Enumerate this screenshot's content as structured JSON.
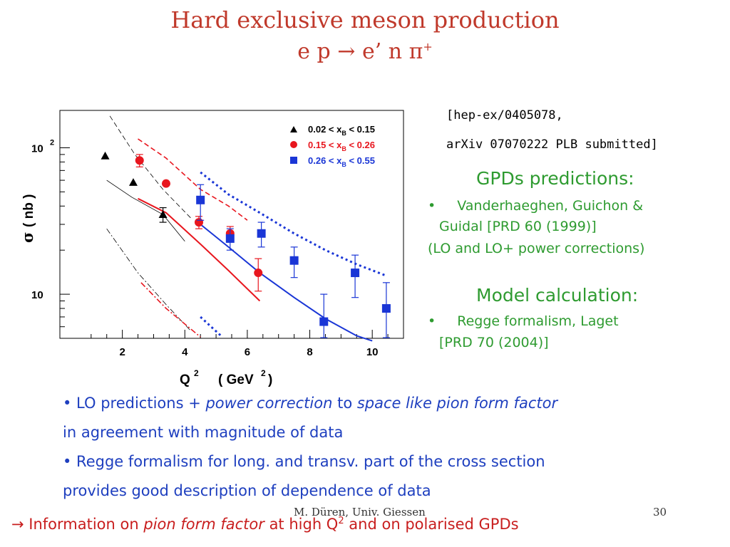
{
  "title": {
    "line1": "Hard exclusive meson production",
    "line2_parts": {
      "left": "e p",
      "arrow": "→",
      "right": "e’ n π",
      "sup": "+"
    }
  },
  "reference": {
    "line1": "[hep-ex/0405078,",
    "line2": "arXiv 07070222 PLB submitted]"
  },
  "gpd_section": {
    "heading": "GPDs predictions:",
    "bullet_text_1": "Vanderhaeghen, Guichon &",
    "bullet_text_2": "Guidal [PRD 60 (1999)]",
    "note": "(LO and LO+ power corrections)"
  },
  "model_section": {
    "heading": "Model calculation:",
    "bullet_text_1": "Regge formalism, Laget",
    "bullet_text_2": "[PRD 70 (2004)]"
  },
  "bullets": [
    {
      "p1": "• LO predictions + ",
      "p2_italic": "power correction",
      "p3": " to ",
      "p4_italic": "space like pion form factor",
      "line2": "in agreement with magnitude of data"
    },
    {
      "line1": "•  Regge formalism for long. and transv. part of the cross section",
      "line2": "provides good description of dependence of data"
    }
  ],
  "footer": {
    "author": "M. Düren, Univ. Giessen",
    "page": "30"
  },
  "conclusion": {
    "arrow": "→",
    "p1": " Information on ",
    "p2_italic": "pion form factor",
    "p3": "  at high Q",
    "sup": "2",
    "p4": " and on polarised GPDs"
  },
  "colors": {
    "title": "#c0392b",
    "green": "#2e9b30",
    "blue_text": "#1e3fbf",
    "red_text": "#c81e1e",
    "series_black": "#000000",
    "series_red": "#e8161e",
    "series_blue": "#1a36d6"
  },
  "chart_data": {
    "type": "scatter",
    "xlabel_parts": {
      "q": "Q",
      "qsup": "2",
      "unit": "( GeV",
      "usup": "2",
      "close": " )"
    },
    "ylabel_parts": {
      "sigma": "σ",
      "unit": "( nb )"
    },
    "y_scale": "log",
    "xlim": [
      0,
      11
    ],
    "ylim": [
      5,
      180
    ],
    "x_ticks": [
      "2",
      "4",
      "6",
      "8",
      "10"
    ],
    "y_ticks": [
      {
        "value": 10,
        "label": "10"
      },
      {
        "value": 100,
        "label": "10",
        "sup": "2"
      }
    ],
    "grid": false,
    "legend_position": "top-right",
    "series": [
      {
        "name_parts": {
          "lo": "0.02 < x",
          "sub": "B",
          "hi": " < 0.15"
        },
        "marker": "triangle",
        "color": "#000000",
        "points": [
          {
            "x": 1.45,
            "y": 88,
            "err": 0
          },
          {
            "x": 2.35,
            "y": 58,
            "err": 0
          },
          {
            "x": 3.3,
            "y": 35,
            "err": 4
          }
        ]
      },
      {
        "name_parts": {
          "lo": "0.15 < x",
          "sub": "B",
          "hi": " < 0.26"
        },
        "marker": "circle",
        "color": "#e8161e",
        "points": [
          {
            "x": 2.55,
            "y": 82,
            "err": 8
          },
          {
            "x": 3.4,
            "y": 57,
            "err": 0
          },
          {
            "x": 4.45,
            "y": 31,
            "err": 3
          },
          {
            "x": 5.45,
            "y": 26,
            "err": 3
          },
          {
            "x": 6.35,
            "y": 14,
            "err": 3.5
          }
        ]
      },
      {
        "name_parts": {
          "lo": "0.26 < x",
          "sub": "B",
          "hi": " < 0.55"
        },
        "marker": "square",
        "color": "#1a36d6",
        "points": [
          {
            "x": 4.5,
            "y": 44,
            "err": 12
          },
          {
            "x": 5.45,
            "y": 24,
            "err": 4
          },
          {
            "x": 6.45,
            "y": 26,
            "err": 5
          },
          {
            "x": 7.5,
            "y": 17,
            "err": 4
          },
          {
            "x": 8.45,
            "y": 6.5,
            "err": 3.5
          },
          {
            "x": 9.45,
            "y": 14,
            "err": 4.5
          },
          {
            "x": 10.45,
            "y": 8,
            "err": 4
          }
        ]
      }
    ],
    "curves": [
      {
        "color": "#000000",
        "style": "solid",
        "x": [
          1.5,
          2.3,
          3.3,
          4.0
        ],
        "y": [
          60,
          46,
          35,
          23
        ]
      },
      {
        "color": "#000000",
        "style": "dashed",
        "x": [
          1.6,
          2.4,
          3.3,
          4.2
        ],
        "y": [
          165,
          90,
          52,
          33
        ]
      },
      {
        "color": "#000000",
        "style": "dashdot",
        "x": [
          1.5,
          2.5,
          3.4,
          4.2
        ],
        "y": [
          28,
          14,
          8.5,
          5.6
        ]
      },
      {
        "color": "#e8161e",
        "style": "solid",
        "x": [
          2.5,
          3.4,
          4.5,
          5.4,
          6.4
        ],
        "y": [
          45,
          36,
          22,
          14.5,
          9
        ]
      },
      {
        "color": "#e8161e",
        "style": "dashed",
        "x": [
          2.5,
          3.4,
          4.5,
          5.4,
          6.0
        ],
        "y": [
          115,
          85,
          52,
          40,
          32
        ]
      },
      {
        "color": "#e8161e",
        "style": "dashdot",
        "x": [
          2.6,
          3.4,
          4.5
        ],
        "y": [
          12,
          8,
          5.1
        ]
      },
      {
        "color": "#1a36d6",
        "style": "solid",
        "x": [
          4.5,
          5.4,
          6.4,
          7.5,
          8.5,
          9.5,
          10.0
        ],
        "y": [
          30,
          21,
          14,
          9.5,
          6.8,
          5.2,
          4.8
        ]
      },
      {
        "color": "#1a36d6",
        "style": "dotted",
        "x": [
          4.5,
          5.4,
          6.4,
          7.5,
          8.5,
          9.5,
          10.4
        ],
        "y": [
          68,
          48,
          36,
          26,
          20,
          16,
          13.5
        ]
      },
      {
        "color": "#1a36d6",
        "style": "dotted",
        "x": [
          4.5,
          5.2
        ],
        "y": [
          7,
          5.1
        ]
      }
    ]
  }
}
